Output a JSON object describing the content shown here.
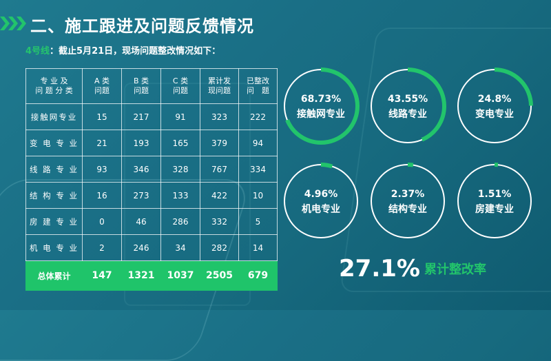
{
  "header": {
    "title": "二、施工跟进及问题反馈情况"
  },
  "subtitle": {
    "line_label": "4号线",
    "text": "：截止5月21日，现场问题整改情况如下："
  },
  "table": {
    "headers": [
      "专 业 及\n问 题 分 类",
      "A 类\n问题",
      "B 类\n问题",
      "C 类\n问题",
      "累计发\n现问题",
      "已整改\n问　题"
    ],
    "rows": [
      [
        "接触网专业",
        "15",
        "217",
        "91",
        "323",
        "222"
      ],
      [
        "变 电 专 业",
        "21",
        "193",
        "165",
        "379",
        "94"
      ],
      [
        "线 路 专 业",
        "93",
        "346",
        "328",
        "767",
        "334"
      ],
      [
        "结 构 专 业",
        "16",
        "273",
        "133",
        "422",
        "10"
      ],
      [
        "房 建 专 业",
        "0",
        "46",
        "286",
        "332",
        "5"
      ],
      [
        "机 电 专 业",
        "2",
        "246",
        "34",
        "282",
        "14"
      ]
    ],
    "total": [
      "总体累计",
      "147",
      "1321",
      "1037",
      "2505",
      "679"
    ]
  },
  "rings": [
    {
      "pct": "68.73%",
      "label": "接触网专业",
      "value": 0.6873
    },
    {
      "pct": "43.55%",
      "label": "线路专业",
      "value": 0.4355
    },
    {
      "pct": "24.8%",
      "label": "变电专业",
      "value": 0.248
    },
    {
      "pct": "4.96%",
      "label": "机电专业",
      "value": 0.0496
    },
    {
      "pct": "2.37%",
      "label": "结构专业",
      "value": 0.0237
    },
    {
      "pct": "1.51%",
      "label": "房建专业",
      "value": 0.0151
    }
  ],
  "summary": {
    "value": "27.1%",
    "label": "累计整改率"
  },
  "colors": {
    "accent": "#22c46b",
    "ring_track": "#ffffff",
    "background": "#1a6f86"
  }
}
